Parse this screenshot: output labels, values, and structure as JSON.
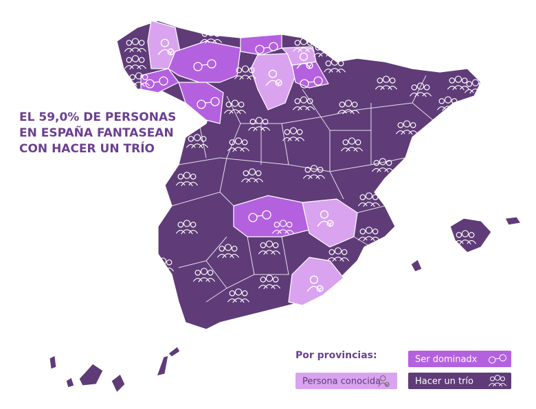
{
  "title_lines": [
    "EL 59,0% DE PERSONAS",
    "EN ESPAÑA FANTASEAN",
    "CON HACER UN TRÍO"
  ],
  "legend": {
    "title": "Por provincias:",
    "items": [
      {
        "label": "Ser dominadx",
        "color": "#b461e0"
      },
      {
        "label": "Persona conocida",
        "color": "#d9a3ef"
      },
      {
        "label": "Hacer un trío",
        "color": "#5f3b78"
      }
    ]
  }
}
